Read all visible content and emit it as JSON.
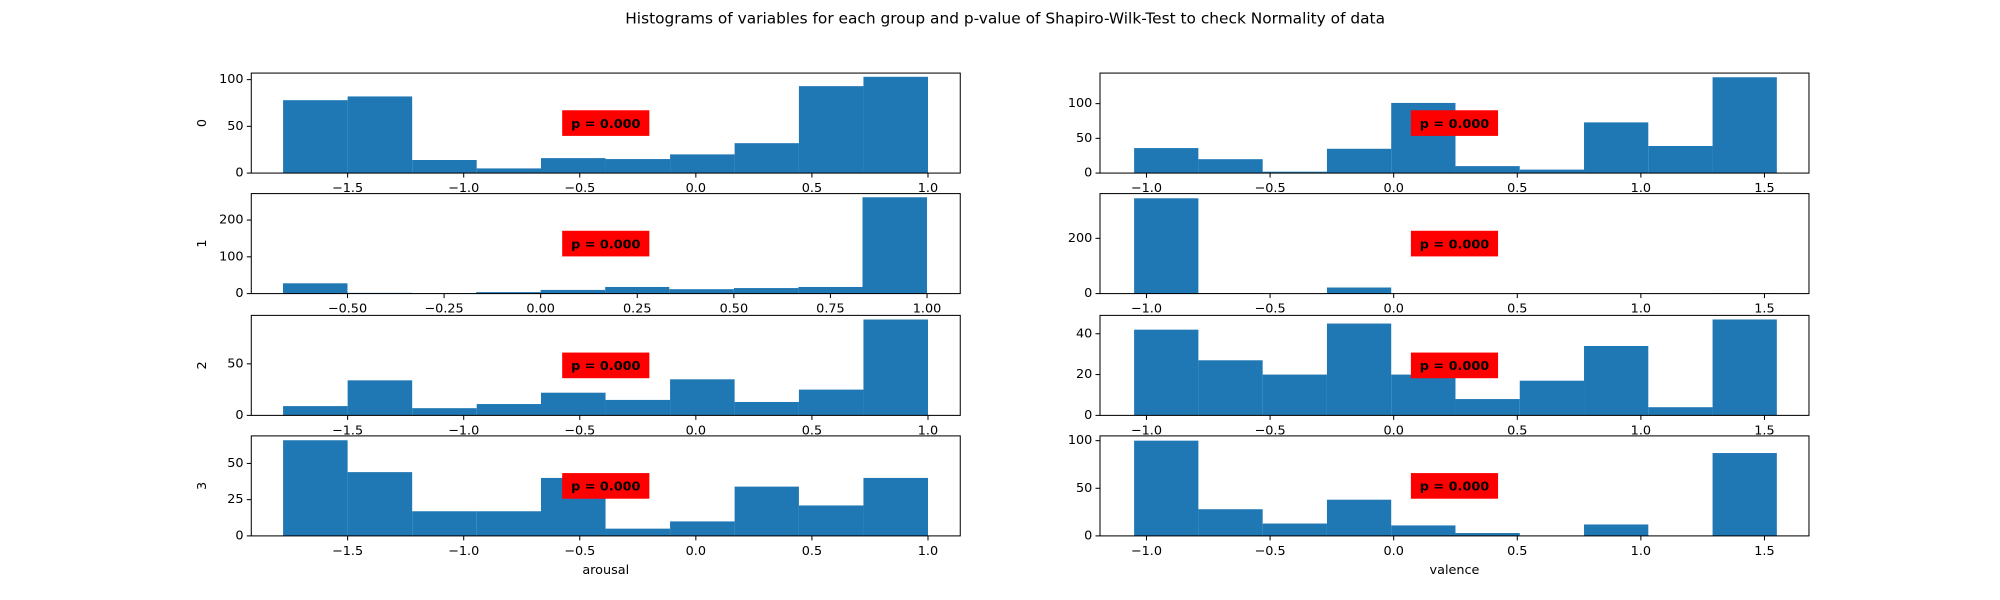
{
  "title": "Histograms of variables for each group and p-value of Shapiro-Wilk-Test to check Normality of data",
  "chart_data": [
    {
      "type": "histogram",
      "ylabel": "0",
      "annotation": "p = 0.000",
      "color": "#1f77b4",
      "bins": [
        -1.778,
        -1.5,
        -1.222,
        -0.944,
        -0.667,
        -0.389,
        -0.111,
        0.167,
        0.444,
        0.722,
        1.0
      ],
      "values": [
        78,
        82,
        14,
        5,
        16,
        15,
        20,
        32,
        93,
        103
      ],
      "xlim": [
        -1.915,
        1.139
      ],
      "ylim": [
        0,
        107
      ],
      "xticks": [
        {
          "value": -1.5,
          "label": "−1.5"
        },
        {
          "value": -1.0,
          "label": "−1.0"
        },
        {
          "value": -0.5,
          "label": "−0.5"
        },
        {
          "value": 0,
          "label": "0.0"
        },
        0.5,
        {
          "value": 1,
          "label": "1.0"
        }
      ],
      "yticks": [
        0,
        50,
        100
      ]
    },
    {
      "type": "histogram",
      "annotation": "p = 0.000",
      "color": "#1f77b4",
      "bins": [
        -1.05,
        -0.79,
        -0.53,
        -0.27,
        -0.01,
        0.25,
        0.51,
        0.77,
        1.03,
        1.29,
        1.55
      ],
      "values": [
        36,
        20,
        2,
        35,
        101,
        10,
        5,
        73,
        39,
        138
      ],
      "xlim": [
        -1.188,
        1.68
      ],
      "ylim": [
        0,
        144
      ],
      "xticks": [
        {
          "value": -1.0,
          "label": "−1.0"
        },
        {
          "value": -0.5,
          "label": "−0.5"
        },
        {
          "value": 0,
          "label": "0.0"
        },
        0.5,
        {
          "value": 1,
          "label": "1.0"
        },
        1.5
      ],
      "yticks": [
        0,
        50,
        100
      ]
    },
    {
      "type": "histogram",
      "ylabel": "1",
      "annotation": "p = 0.000",
      "color": "#1f77b4",
      "bins": [
        -0.667,
        -0.5,
        -0.333,
        -0.167,
        0.0,
        0.167,
        0.333,
        0.5,
        0.667,
        0.833,
        1.0
      ],
      "values": [
        28,
        2,
        1,
        4,
        10,
        18,
        12,
        15,
        18,
        262
      ],
      "xlim": [
        -0.749,
        1.086
      ],
      "ylim": [
        0,
        272
      ],
      "xticks": [
        {
          "value": -0.5,
          "label": "−0.50"
        },
        {
          "value": -0.25,
          "label": "−0.25"
        },
        {
          "value": 0,
          "label": "0.00"
        },
        0.25,
        {
          "value": 0.5,
          "label": "0.50"
        },
        0.75,
        {
          "value": 1,
          "label": "1.00"
        }
      ],
      "yticks": [
        0,
        100,
        200
      ]
    },
    {
      "type": "histogram",
      "annotation": "p = 0.000",
      "color": "#1f77b4",
      "bins": [
        -1.05,
        -0.79,
        -0.53,
        -0.27,
        -0.01,
        0.25,
        0.51,
        0.77,
        1.03,
        1.29,
        1.55
      ],
      "values": [
        345,
        2,
        0,
        22,
        0,
        0,
        0,
        0,
        0,
        1
      ],
      "xlim": [
        -1.188,
        1.68
      ],
      "ylim": [
        0,
        362
      ],
      "xticks": [
        {
          "value": -1.0,
          "label": "−1.0"
        },
        {
          "value": -0.5,
          "label": "−0.5"
        },
        {
          "value": 0,
          "label": "0.0"
        },
        0.5,
        {
          "value": 1,
          "label": "1.0"
        },
        1.5
      ],
      "yticks": [
        0,
        200
      ]
    },
    {
      "type": "histogram",
      "ylabel": "2",
      "annotation": "p = 0.000",
      "color": "#1f77b4",
      "bins": [
        -1.778,
        -1.5,
        -1.222,
        -0.944,
        -0.667,
        -0.389,
        -0.111,
        0.167,
        0.444,
        0.722,
        1.0
      ],
      "values": [
        9,
        34,
        7,
        11,
        22,
        15,
        35,
        13,
        25,
        93
      ],
      "xlim": [
        -1.915,
        1.139
      ],
      "ylim": [
        0,
        97
      ],
      "xticks": [
        {
          "value": -1.5,
          "label": "−1.5"
        },
        {
          "value": -1.0,
          "label": "−1.0"
        },
        {
          "value": -0.5,
          "label": "−0.5"
        },
        {
          "value": 0,
          "label": "0.0"
        },
        0.5,
        {
          "value": 1,
          "label": "1.0"
        }
      ],
      "yticks": [
        0,
        50
      ]
    },
    {
      "type": "histogram",
      "annotation": "p = 0.000",
      "color": "#1f77b4",
      "bins": [
        -1.05,
        -0.79,
        -0.53,
        -0.27,
        -0.01,
        0.25,
        0.51,
        0.77,
        1.03,
        1.29,
        1.55
      ],
      "values": [
        42,
        27,
        20,
        45,
        20,
        8,
        17,
        34,
        4,
        47
      ],
      "xlim": [
        -1.188,
        1.68
      ],
      "ylim": [
        0,
        49
      ],
      "xticks": [
        {
          "value": -1.0,
          "label": "−1.0"
        },
        {
          "value": -0.5,
          "label": "−0.5"
        },
        {
          "value": 0,
          "label": "0.0"
        },
        0.5,
        {
          "value": 1,
          "label": "1.0"
        },
        1.5
      ],
      "yticks": [
        0,
        20,
        40
      ]
    },
    {
      "type": "histogram",
      "ylabel": "3",
      "xlabel": "arousal",
      "annotation": "p = 0.000",
      "color": "#1f77b4",
      "bins": [
        -1.778,
        -1.5,
        -1.222,
        -0.944,
        -0.667,
        -0.389,
        -0.111,
        0.167,
        0.444,
        0.722,
        1.0
      ],
      "values": [
        66,
        44,
        17,
        17,
        40,
        5,
        10,
        34,
        21,
        40
      ],
      "xlim": [
        -1.915,
        1.139
      ],
      "ylim": [
        0,
        69
      ],
      "xticks": [
        {
          "value": -1.5,
          "label": "−1.5"
        },
        {
          "value": -1.0,
          "label": "−1.0"
        },
        {
          "value": -0.5,
          "label": "−0.5"
        },
        {
          "value": 0,
          "label": "0.0"
        },
        0.5,
        {
          "value": 1,
          "label": "1.0"
        }
      ],
      "yticks": [
        0,
        25,
        50
      ]
    },
    {
      "type": "histogram",
      "xlabel": "valence",
      "annotation": "p = 0.000",
      "color": "#1f77b4",
      "bins": [
        -1.05,
        -0.79,
        -0.53,
        -0.27,
        -0.01,
        0.25,
        0.51,
        0.77,
        1.03,
        1.29,
        1.55
      ],
      "values": [
        100,
        28,
        13,
        38,
        11,
        3,
        0,
        12,
        0,
        87
      ],
      "xlim": [
        -1.188,
        1.68
      ],
      "ylim": [
        0,
        105
      ],
      "xticks": [
        {
          "value": -1.0,
          "label": "−1.0"
        },
        {
          "value": -0.5,
          "label": "−0.5"
        },
        {
          "value": 0,
          "label": "0.0"
        },
        0.5,
        {
          "value": 1,
          "label": "1.0"
        },
        1.5
      ],
      "yticks": [
        0,
        50,
        100
      ]
    }
  ]
}
